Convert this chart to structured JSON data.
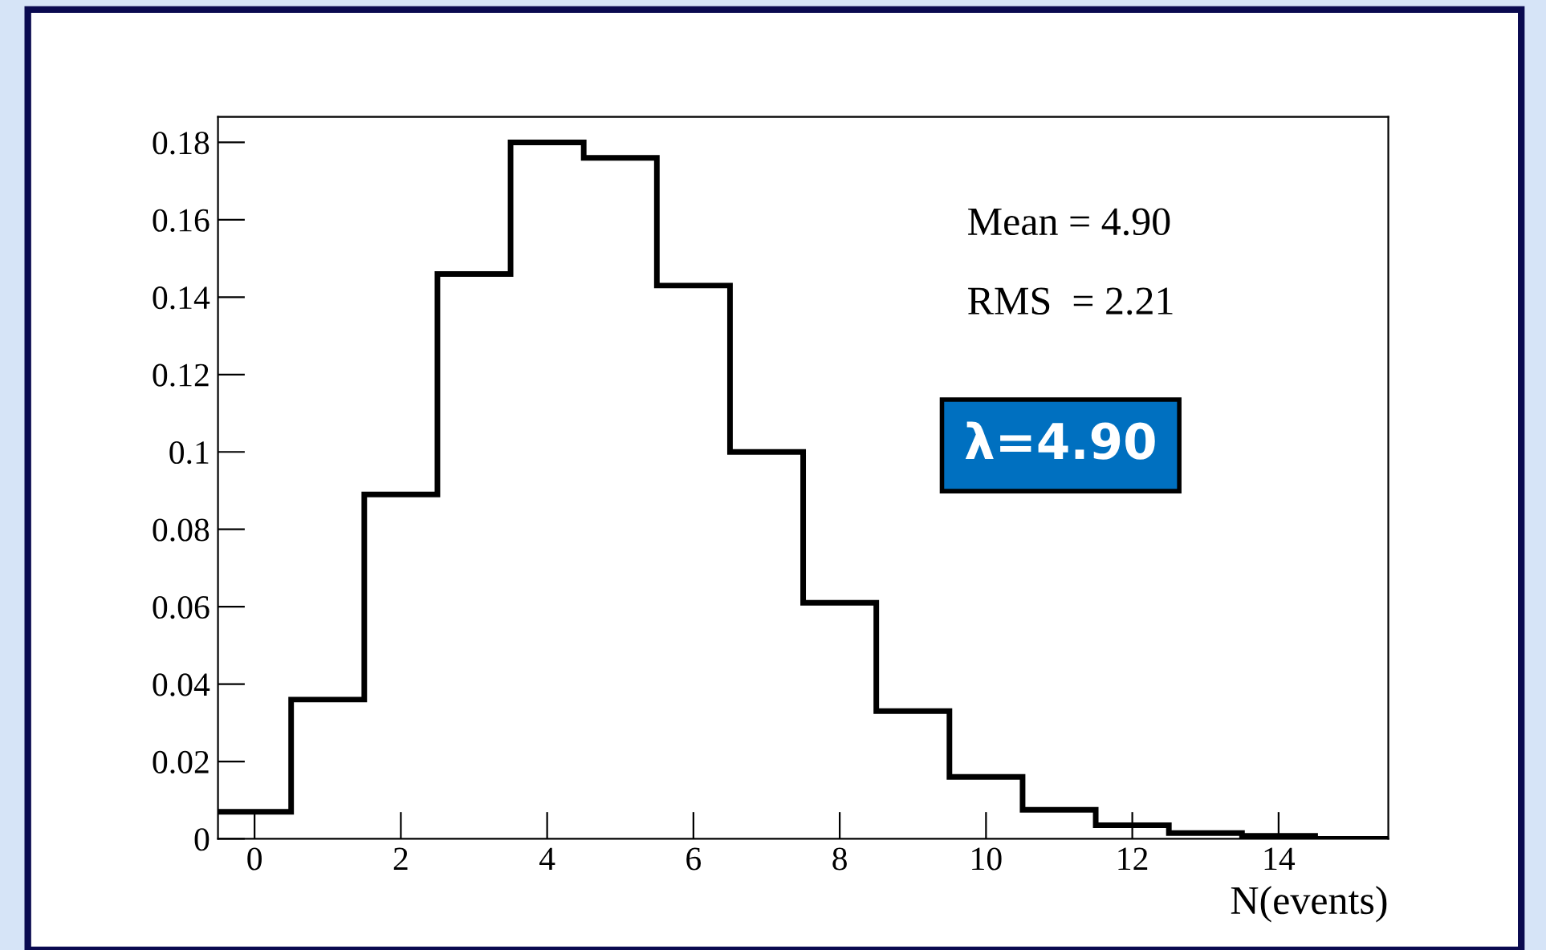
{
  "chart_data": {
    "type": "histogram",
    "bins": [
      -0.5,
      0.5,
      1.5,
      2.5,
      3.5,
      4.5,
      5.5,
      6.5,
      7.5,
      8.5,
      9.5,
      10.5,
      11.5,
      12.5,
      13.5,
      14.5,
      15.5
    ],
    "values": [
      0.007,
      0.036,
      0.089,
      0.146,
      0.18,
      0.176,
      0.143,
      0.1,
      0.061,
      0.033,
      0.016,
      0.0075,
      0.0035,
      0.0015,
      0.0008,
      0
    ],
    "color": "#000000",
    "xlabel": "N(events)",
    "xlim": [
      -0.5,
      15.5
    ],
    "xticks": [
      0,
      2,
      4,
      6,
      8,
      10,
      12,
      14
    ],
    "ylim": [
      0,
      0.1866
    ],
    "yticks": [
      0,
      0.02,
      0.04,
      0.06,
      0.08,
      0.1,
      0.12,
      0.14,
      0.16,
      0.18
    ],
    "annotations": [
      "Mean = 4.90",
      "RMS  = 2.21",
      "λ=4.90"
    ],
    "grid": false,
    "legend": false
  }
}
